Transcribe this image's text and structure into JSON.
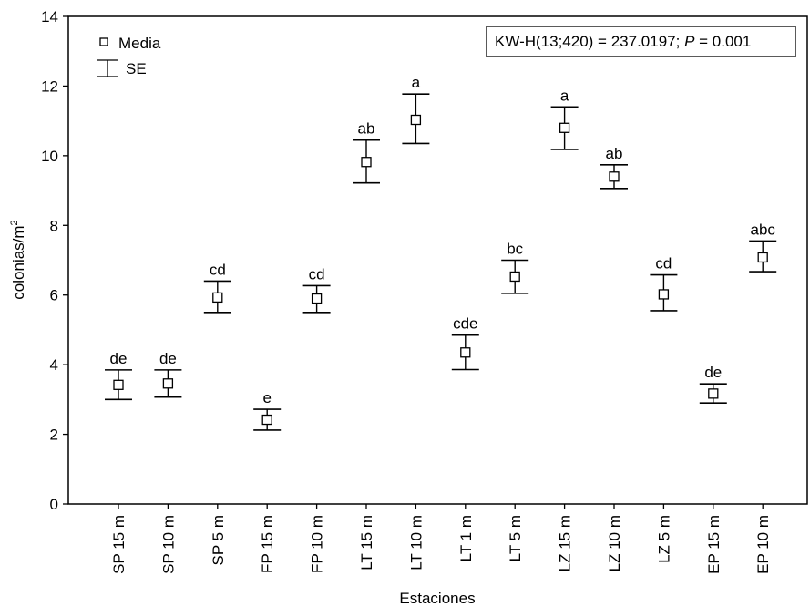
{
  "chart_data": {
    "type": "scatter",
    "xlabel": "Estaciones",
    "ylabel": "colonias/m",
    "ylabel_superscript": "2",
    "ylim": [
      0,
      14
    ],
    "yticks": [
      0,
      2,
      4,
      6,
      8,
      10,
      12,
      14
    ],
    "grid": false,
    "legend": {
      "placement": "top-left",
      "entries": [
        {
          "marker": "square",
          "label": "Media"
        },
        {
          "marker": "errorbar",
          "label": "SE"
        }
      ]
    },
    "stat_box": {
      "placement": "top-right",
      "prefix": "KW-H(13;420) = 237.0197; ",
      "p_symbol": "P",
      "suffix": " = 0.001"
    },
    "categories": [
      "SP 15 m",
      "SP 10 m",
      "SP 5 m",
      "FP 15 m",
      "FP 10 m",
      "LT 15 m",
      "LT 10 m",
      "LT 1 m",
      "LT 5 m",
      "LZ 15 m",
      "LZ 10 m",
      "LZ 5 m",
      "EP 15 m",
      "EP 10 m"
    ],
    "series": [
      {
        "mean": [
          3.42,
          3.46,
          5.93,
          2.42,
          5.9,
          9.82,
          11.03,
          4.35,
          6.53,
          10.8,
          9.4,
          6.02,
          3.17,
          7.08
        ],
        "se_low": [
          3.0,
          3.07,
          5.5,
          2.12,
          5.5,
          9.22,
          10.35,
          3.86,
          6.05,
          10.18,
          9.06,
          5.55,
          2.9,
          6.67
        ],
        "se_high": [
          3.85,
          3.85,
          6.4,
          2.72,
          6.27,
          10.45,
          11.77,
          4.85,
          7.0,
          11.4,
          9.74,
          6.58,
          3.45,
          7.55
        ],
        "letters": [
          "de",
          "de",
          "cd",
          "e",
          "cd",
          "ab",
          "a",
          "cde",
          "bc",
          "a",
          "ab",
          "cd",
          "de",
          "abc"
        ]
      }
    ]
  }
}
